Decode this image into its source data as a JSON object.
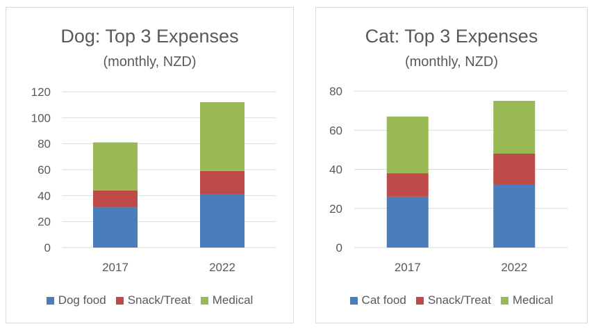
{
  "colors": {
    "food": "#4a7ebb",
    "snack": "#be4b48",
    "medical": "#98b954",
    "grid": "#d9d9d9",
    "text": "#595959"
  },
  "chart_data": [
    {
      "type": "bar",
      "stacked": true,
      "title": "Dog: Top 3 Expenses",
      "subtitle": "(monthly, NZD)",
      "categories": [
        "2017",
        "2022"
      ],
      "series": [
        {
          "name": "Dog food",
          "values": [
            31,
            41
          ]
        },
        {
          "name": "Snack/Treat",
          "values": [
            13,
            18
          ]
        },
        {
          "name": "Medical",
          "values": [
            37,
            53
          ]
        }
      ],
      "ylim": [
        0,
        120
      ],
      "yticks": [
        0,
        20,
        40,
        60,
        80,
        100,
        120
      ],
      "grid": true,
      "legend": "bottom"
    },
    {
      "type": "bar",
      "stacked": true,
      "title": "Cat: Top 3 Expenses",
      "subtitle": "(monthly, NZD)",
      "categories": [
        "2017",
        "2022"
      ],
      "series": [
        {
          "name": "Cat food",
          "values": [
            26,
            32
          ]
        },
        {
          "name": "Snack/Treat",
          "values": [
            12,
            16
          ]
        },
        {
          "name": "Medical",
          "values": [
            29,
            27
          ]
        }
      ],
      "ylim": [
        0,
        80
      ],
      "yticks": [
        0,
        20,
        40,
        60,
        80
      ],
      "grid": true,
      "legend": "bottom"
    }
  ]
}
